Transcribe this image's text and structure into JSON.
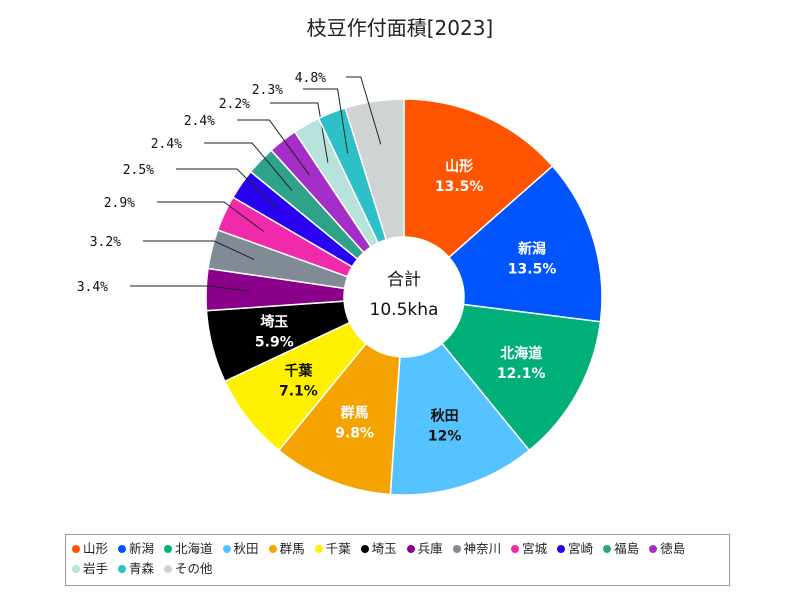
{
  "chart_data": {
    "type": "pie",
    "title": "枝豆作付面積[2023]",
    "center_label": "合計",
    "center_value": "10.5kha",
    "slices": [
      {
        "name": "山形",
        "value": 13.5,
        "label": "13.5%",
        "color": "#FF5500"
      },
      {
        "name": "新潟",
        "value": 13.5,
        "label": "13.5%",
        "color": "#0055FF"
      },
      {
        "name": "北海道",
        "value": 12.1,
        "label": "12.1%",
        "color": "#00B078"
      },
      {
        "name": "秋田",
        "value": 12.0,
        "label": "12%",
        "color": "#55C3FF"
      },
      {
        "name": "群馬",
        "value": 9.8,
        "label": "9.8%",
        "color": "#F4A300"
      },
      {
        "name": "千葉",
        "value": 7.1,
        "label": "7.1%",
        "color": "#FFF000"
      },
      {
        "name": "埼玉",
        "value": 5.9,
        "label": "5.9%",
        "color": "#000000"
      },
      {
        "name": "兵庫",
        "value": 3.4,
        "label": "3.4%",
        "color": "#8B008B"
      },
      {
        "name": "神奈川",
        "value": 3.2,
        "label": "3.2%",
        "color": "#808B96"
      },
      {
        "name": "宮城",
        "value": 2.9,
        "label": "2.9%",
        "color": "#F02AAA"
      },
      {
        "name": "宮崎",
        "value": 2.5,
        "label": "2.5%",
        "color": "#2A00F0"
      },
      {
        "name": "福島",
        "value": 2.4,
        "label": "2.4%",
        "color": "#2EA38A"
      },
      {
        "name": "徳島",
        "value": 2.4,
        "label": "2.4%",
        "color": "#A62EC8"
      },
      {
        "name": "岩手",
        "value": 2.2,
        "label": "2.2%",
        "color": "#B8E3DC"
      },
      {
        "name": "青森",
        "value": 2.3,
        "label": "2.3%",
        "color": "#2EC0C8"
      },
      {
        "name": "その他",
        "value": 4.8,
        "label": "4.8%",
        "color": "#D0D3D4"
      }
    ],
    "legend_position": "bottom"
  }
}
